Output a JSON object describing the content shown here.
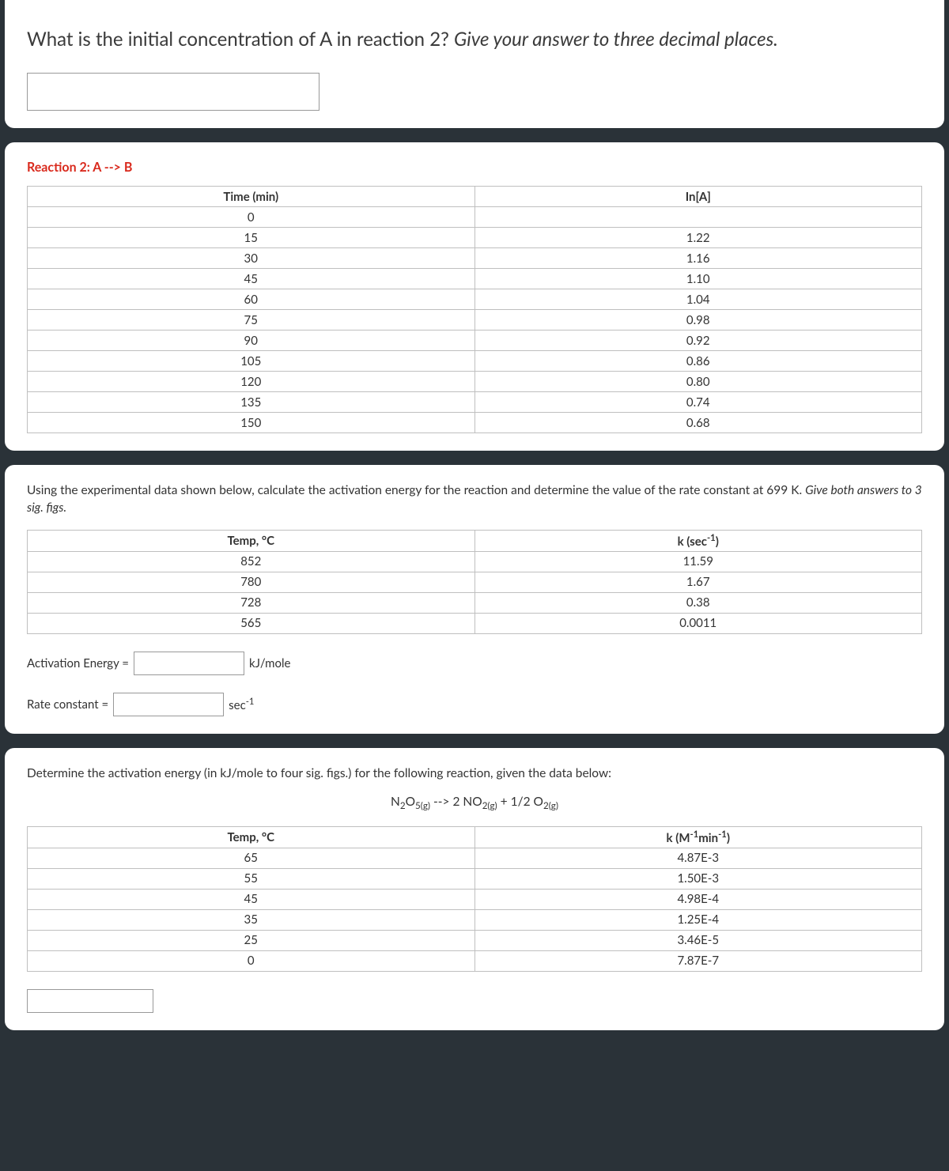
{
  "q1": {
    "prompt_plain": "What is the initial concentration of A in reaction 2? ",
    "prompt_italic": "Give your answer to three decimal places."
  },
  "reaction2": {
    "title": "Reaction 2: A --> B",
    "col1": "Time (min)",
    "col2": "In[A]",
    "rows": [
      {
        "t": "0",
        "v": ""
      },
      {
        "t": "15",
        "v": "1.22"
      },
      {
        "t": "30",
        "v": "1.16"
      },
      {
        "t": "45",
        "v": "1.10"
      },
      {
        "t": "60",
        "v": "1.04"
      },
      {
        "t": "75",
        "v": "0.98"
      },
      {
        "t": "90",
        "v": "0.92"
      },
      {
        "t": "105",
        "v": "0.86"
      },
      {
        "t": "120",
        "v": "0.80"
      },
      {
        "t": "135",
        "v": "0.74"
      },
      {
        "t": "150",
        "v": "0.68"
      }
    ]
  },
  "activation1": {
    "instr_plain": "Using the experimental data shown below, calculate the activation energy for the reaction and determine the value of the rate constant at 699 K. ",
    "instr_italic": "Give both answers to 3 sig. figs.",
    "col1": "Temp, °C",
    "col2_prefix": "k (sec",
    "col2_sup": "-1",
    "col2_suffix": ")",
    "rows": [
      {
        "t": "852",
        "k": "11.59"
      },
      {
        "t": "780",
        "k": "1.67"
      },
      {
        "t": "728",
        "k": "0.38"
      },
      {
        "t": "565",
        "k": "0.0011"
      }
    ],
    "ae_label": "Activation Energy =",
    "ae_unit": "kJ/mole",
    "rc_label": "Rate constant =",
    "rc_unit_prefix": "sec",
    "rc_unit_sup": "-1"
  },
  "activation2": {
    "instr": "Determine the activation energy (in kJ/mole to four sig. figs.) for the following reaction, given the data below:",
    "eq_p1": "N",
    "eq_p2": "2",
    "eq_p3": "O",
    "eq_p4": "5(g)",
    "eq_p5": " --> 2 NO",
    "eq_p6": "2(g)",
    "eq_p7": " + 1/2 O",
    "eq_p8": "2(g)",
    "col1": "Temp, °C",
    "col2_prefix": "k (M",
    "col2_sup1": "-1",
    "col2_mid": "min",
    "col2_sup2": "-1",
    "col2_suffix": ")",
    "rows": [
      {
        "t": "65",
        "k": "4.87E-3"
      },
      {
        "t": "55",
        "k": "1.50E-3"
      },
      {
        "t": "45",
        "k": "4.98E-4"
      },
      {
        "t": "35",
        "k": "1.25E-4"
      },
      {
        "t": "25",
        "k": "3.46E-5"
      },
      {
        "t": "0",
        "k": "7.87E-7"
      }
    ]
  }
}
